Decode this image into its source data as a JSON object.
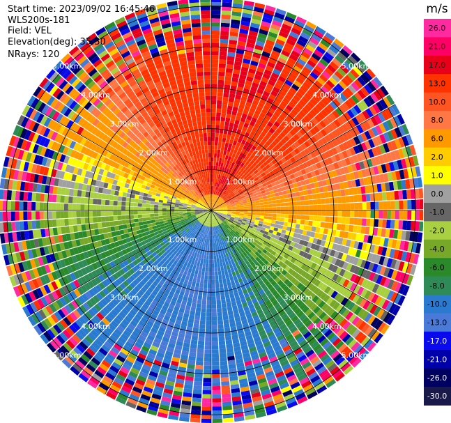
{
  "header": {
    "start_time": "Start time: 2023/09/02 16:45:46",
    "instrument": "WLS200s-181",
    "field": "Field: VEL",
    "elevation": "Elevation(deg): 35.30",
    "nrays": "NRays: 120"
  },
  "chart_data": {
    "type": "heatmap",
    "projection": "polar-ppi",
    "field": "VEL",
    "n_rays": 120,
    "elevation_deg": 35.3,
    "max_range_km": 5.2,
    "range_rings_km": [
      1.0,
      2.0,
      3.0,
      4.0,
      5.0
    ],
    "ring_labels": [
      "1.00km",
      "2.00km",
      "3.00km",
      "4.00km",
      "5.00km"
    ],
    "spokes_deg": [
      0,
      30,
      60,
      90,
      120,
      150,
      180,
      210,
      240,
      270,
      300,
      330
    ],
    "colorbar": {
      "unit": "m/s",
      "ticks": [
        "26.0",
        "21.0",
        "17.0",
        "13.0",
        "10.0",
        "8.0",
        "6.0",
        "2.0",
        "1.0",
        "0.0",
        "-1.0",
        "-2.0",
        "-4.0",
        "-6.0",
        "-8.0",
        "-10.0",
        "-13.0",
        "-17.0",
        "-21.0",
        "-26.0",
        "-30.0"
      ],
      "colors": [
        "#ff2aa0",
        "#ff0066",
        "#e8001a",
        "#ff3300",
        "#ff5522",
        "#ff7744",
        "#ff9900",
        "#ffcc00",
        "#ffff00",
        "#a0a0a0",
        "#666666",
        "#a8d040",
        "#78a828",
        "#2a8a2a",
        "#2e8b57",
        "#2a7ad0",
        "#4a7ad8",
        "#0a0aee",
        "#0000aa",
        "#000060",
        "#1a1a4a"
      ]
    },
    "velocity_pattern": {
      "description": "dominant wind toward azimuth of positive velocities",
      "positive_sector_center_deg": 15,
      "negative_sector_center_deg": 195,
      "amplitude_ms": 13.0,
      "noise_start_km": 3.5
    }
  }
}
